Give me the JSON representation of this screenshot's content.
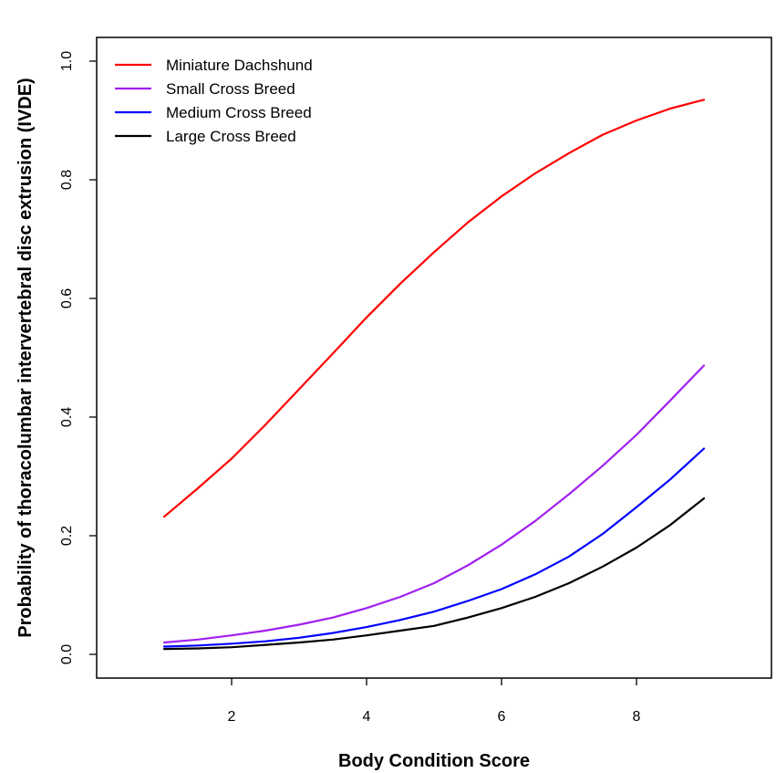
{
  "chart_data": {
    "type": "line",
    "xlabel": "Body Condition Score",
    "ylabel": "Probability of thoracolumbar intervertebral disc extrusion (IVDE)",
    "xlim": [
      0,
      10
    ],
    "ylim": [
      -0.04,
      1.04
    ],
    "x_ticks": [
      2,
      4,
      6,
      8
    ],
    "y_ticks": [
      "0.0",
      "0.2",
      "0.4",
      "0.6",
      "0.8",
      "1.0"
    ],
    "legend_position": "top-left",
    "grid": false,
    "x": [
      1,
      1.5,
      2,
      2.5,
      3,
      3.5,
      4,
      4.5,
      5,
      5.5,
      6,
      6.5,
      7,
      7.5,
      8,
      8.5,
      9
    ],
    "series": [
      {
        "name": "Miniature Dachshund",
        "color": "#ff0000",
        "values": [
          0.232,
          0.28,
          0.33,
          0.387,
          0.447,
          0.507,
          0.568,
          0.625,
          0.678,
          0.728,
          0.772,
          0.811,
          0.845,
          0.876,
          0.9,
          0.92,
          0.935
        ]
      },
      {
        "name": "Small Cross Breed",
        "color": "#a020f0",
        "values": [
          0.02,
          0.025,
          0.032,
          0.04,
          0.05,
          0.062,
          0.078,
          0.097,
          0.12,
          0.15,
          0.185,
          0.225,
          0.27,
          0.318,
          0.37,
          0.428,
          0.487
        ]
      },
      {
        "name": "Medium Cross Breed",
        "color": "#0000ff",
        "values": [
          0.013,
          0.015,
          0.018,
          0.022,
          0.028,
          0.036,
          0.046,
          0.058,
          0.072,
          0.09,
          0.11,
          0.135,
          0.165,
          0.203,
          0.248,
          0.295,
          0.347
        ]
      },
      {
        "name": "Large Cross Breed",
        "color": "#000000",
        "values": [
          0.009,
          0.01,
          0.012,
          0.016,
          0.02,
          0.025,
          0.032,
          0.04,
          0.048,
          0.062,
          0.078,
          0.097,
          0.12,
          0.148,
          0.18,
          0.218,
          0.263
        ]
      }
    ]
  }
}
